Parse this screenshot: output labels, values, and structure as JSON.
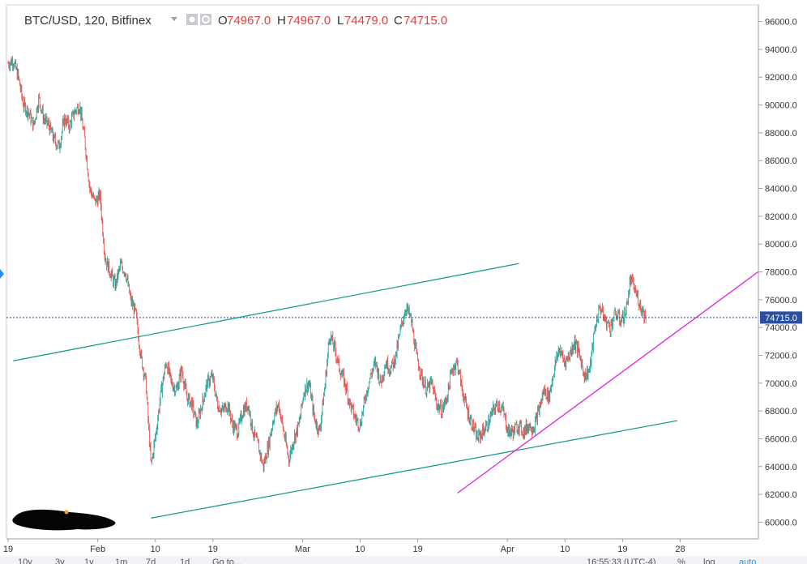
{
  "header": {
    "symbol": "BTC/USD, 120, Bitfinex",
    "open_label": "O",
    "open_value": "74967.0",
    "high_label": "H",
    "high_value": "74967.0",
    "low_label": "L",
    "low_value": "74479.0",
    "close_label": "C",
    "close_value": "74715.0"
  },
  "colors": {
    "up": "#26a69a",
    "down": "#ef5350",
    "channel": "#1a9e8e",
    "support": "#e020e0",
    "price_line": "#2a4fa0",
    "price_tag": "#2a4fa0",
    "header_values": "#e04040"
  },
  "price_axis": {
    "ticks": [
      "96000.0",
      "94000.0",
      "92000.0",
      "90000.0",
      "88000.0",
      "86000.0",
      "84000.0",
      "82000.0",
      "80000.0",
      "78000.0",
      "76000.0",
      "74000.0",
      "72000.0",
      "70000.0",
      "68000.0",
      "66000.0",
      "64000.0",
      "62000.0",
      "60000.0"
    ],
    "current_price": "74715.0"
  },
  "time_axis": {
    "labels": [
      "19",
      "Feb",
      "10",
      "19",
      "Mar",
      "10",
      "19",
      "Apr",
      "10",
      "19",
      "28"
    ]
  },
  "footer": {
    "ranges": [
      "10y",
      "3y",
      "1y",
      "1m",
      "7d",
      "1d",
      "Go to..."
    ],
    "clock": "16:55:33 (UTC-4)",
    "percent": "%",
    "log": "log",
    "auto": "auto"
  },
  "chart_data": {
    "type": "candlestick",
    "title": "BTC/USD, 120, Bitfinex",
    "ylim": [
      58800,
      97200
    ],
    "y_ticks": [
      96000,
      94000,
      92000,
      90000,
      88000,
      86000,
      84000,
      82000,
      80000,
      78000,
      76000,
      74000,
      72000,
      70000,
      68000,
      66000,
      64000,
      62000,
      60000
    ],
    "x_tick_labels": [
      "19",
      "Feb",
      "10",
      "19",
      "Mar",
      "10",
      "19",
      "Apr",
      "10",
      "19",
      "28"
    ],
    "current_price": 74715.0,
    "ohlc_last": {
      "open": 74967.0,
      "high": 74967.0,
      "low": 74479.0,
      "close": 74715.0
    },
    "price_path": [
      [
        0,
        93000
      ],
      [
        1,
        93200
      ],
      [
        2,
        92000
      ],
      [
        3,
        90000
      ],
      [
        4,
        89500
      ],
      [
        5,
        88500
      ],
      [
        6,
        90500
      ],
      [
        7,
        89000
      ],
      [
        8,
        88500
      ],
      [
        9,
        87500
      ],
      [
        10,
        87000
      ],
      [
        11,
        89000
      ],
      [
        12,
        88500
      ],
      [
        13,
        89500
      ],
      [
        14,
        90000
      ],
      [
        15,
        87500
      ],
      [
        16,
        84000
      ],
      [
        17,
        83000
      ],
      [
        18,
        83500
      ],
      [
        19,
        79000
      ],
      [
        20,
        78000
      ],
      [
        21,
        77000
      ],
      [
        22,
        78500
      ],
      [
        23,
        78000
      ],
      [
        24,
        76000
      ],
      [
        25,
        75000
      ],
      [
        26,
        72000
      ],
      [
        27,
        70000
      ],
      [
        28,
        64000
      ],
      [
        29,
        66500
      ],
      [
        30,
        69500
      ],
      [
        31,
        71500
      ],
      [
        32,
        70000
      ],
      [
        33,
        69500
      ],
      [
        34,
        71000
      ],
      [
        35,
        69000
      ],
      [
        36,
        68500
      ],
      [
        37,
        67000
      ],
      [
        38,
        68500
      ],
      [
        39,
        70000
      ],
      [
        40,
        70500
      ],
      [
        41,
        68500
      ],
      [
        42,
        68000
      ],
      [
        43,
        68500
      ],
      [
        44,
        67000
      ],
      [
        45,
        66500
      ],
      [
        46,
        68000
      ],
      [
        47,
        68500
      ],
      [
        48,
        66500
      ],
      [
        49,
        65500
      ],
      [
        50,
        64000
      ],
      [
        51,
        65500
      ],
      [
        52,
        67500
      ],
      [
        53,
        68500
      ],
      [
        54,
        66500
      ],
      [
        55,
        64500
      ],
      [
        56,
        66000
      ],
      [
        57,
        67000
      ],
      [
        58,
        69500
      ],
      [
        59,
        70000
      ],
      [
        60,
        67500
      ],
      [
        61,
        66500
      ],
      [
        62,
        69500
      ],
      [
        63,
        73500
      ],
      [
        64,
        72500
      ],
      [
        65,
        71000
      ],
      [
        66,
        70000
      ],
      [
        67,
        68500
      ],
      [
        68,
        67500
      ],
      [
        69,
        67000
      ],
      [
        70,
        69000
      ],
      [
        71,
        70500
      ],
      [
        72,
        71500
      ],
      [
        73,
        70000
      ],
      [
        74,
        71500
      ],
      [
        75,
        71000
      ],
      [
        76,
        72000
      ],
      [
        77,
        74000
      ],
      [
        78,
        75500
      ],
      [
        79,
        74500
      ],
      [
        80,
        72000
      ],
      [
        81,
        70500
      ],
      [
        82,
        69500
      ],
      [
        83,
        70000
      ],
      [
        84,
        68500
      ],
      [
        85,
        68000
      ],
      [
        86,
        69000
      ],
      [
        87,
        71000
      ],
      [
        88,
        71500
      ],
      [
        89,
        69500
      ],
      [
        90,
        68000
      ],
      [
        91,
        67000
      ],
      [
        92,
        66000
      ],
      [
        93,
        66500
      ],
      [
        94,
        67000
      ],
      [
        95,
        68000
      ],
      [
        96,
        68500
      ],
      [
        97,
        68000
      ],
      [
        98,
        66500
      ],
      [
        99,
        66500
      ],
      [
        100,
        67000
      ],
      [
        101,
        66500
      ],
      [
        102,
        67000
      ],
      [
        103,
        66800
      ],
      [
        104,
        68000
      ],
      [
        105,
        69500
      ],
      [
        106,
        69000
      ],
      [
        107,
        71000
      ],
      [
        108,
        72500
      ],
      [
        109,
        71500
      ],
      [
        110,
        72000
      ],
      [
        111,
        73000
      ],
      [
        112,
        72000
      ],
      [
        113,
        70500
      ],
      [
        114,
        71000
      ],
      [
        115,
        74000
      ],
      [
        116,
        75500
      ],
      [
        117,
        74500
      ],
      [
        118,
        74000
      ],
      [
        119,
        75000
      ],
      [
        120,
        74500
      ],
      [
        121,
        75000
      ],
      [
        122,
        77500
      ],
      [
        123,
        76500
      ],
      [
        124,
        75500
      ],
      [
        125,
        74715
      ]
    ],
    "drawings": [
      {
        "name": "channel-upper",
        "points": [
          [
            1,
            71600
          ],
          [
            100,
            78600
          ]
        ]
      },
      {
        "name": "channel-lower",
        "points": [
          [
            28,
            60300
          ],
          [
            131,
            67300
          ]
        ]
      },
      {
        "name": "support-line",
        "points": [
          [
            88,
            62100
          ],
          [
            152,
            79400
          ]
        ]
      }
    ]
  }
}
